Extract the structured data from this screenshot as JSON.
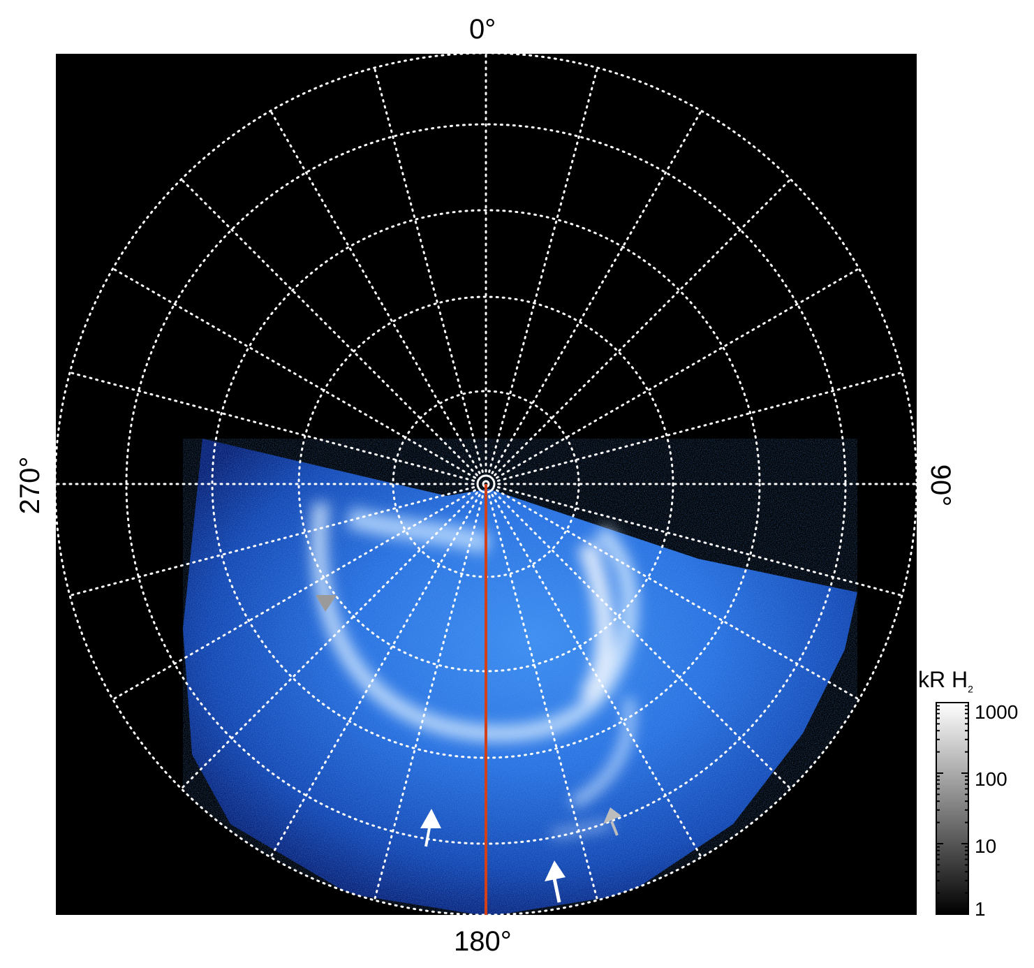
{
  "axes": {
    "top": "0°",
    "right": "90°",
    "bottom": "180°",
    "left": "270°"
  },
  "colorbar": {
    "title": "kR H",
    "title_sub": "2",
    "ticks": [
      "1000",
      "100",
      "10",
      "1"
    ],
    "scale": "log",
    "range": [
      1,
      1000
    ],
    "colormap": [
      "#000000",
      "#ffffff"
    ]
  },
  "image_colors": {
    "background": "#000000",
    "aurora_dark": "#0a2a8a",
    "aurora_mid": "#1f6fe0",
    "aurora_bright": "#e6f2ff",
    "grid": "#ffffff",
    "meridian_line": "#d2401a",
    "arrow_white": "#ffffff",
    "arrow_gray": "#9a9a9a"
  },
  "grid": {
    "style": "dotted",
    "meridian_step_deg": 15
  },
  "arrows": [
    {
      "color": "white",
      "name": "arrow-white-left"
    },
    {
      "color": "white",
      "name": "arrow-white-right"
    },
    {
      "color": "gray",
      "name": "arrow-gray-left"
    },
    {
      "color": "gray",
      "name": "arrow-gray-right"
    }
  ]
}
